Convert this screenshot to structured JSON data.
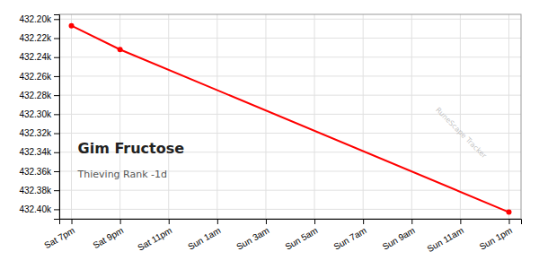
{
  "chart_data": {
    "type": "line",
    "title": "Gim Fructose",
    "subtitle": "Thieving Rank -1d",
    "annotations": [
      "RuneScape Tracker"
    ],
    "x": [
      0,
      2,
      18
    ],
    "values": [
      432207,
      432232,
      432403
    ],
    "color": "#ff0000",
    "marker": "circle",
    "xlim": [
      -0.5,
      18.5
    ],
    "xticks": [
      {
        "value": 0,
        "label": "Sat 7pm"
      },
      {
        "value": 2,
        "label": "Sat 9pm"
      },
      {
        "value": 4,
        "label": "Sat 11pm"
      },
      {
        "value": 6,
        "label": "Sun 1am"
      },
      {
        "value": 8,
        "label": "Sun 3am"
      },
      {
        "value": 10,
        "label": "Sun 5am"
      },
      {
        "value": 12,
        "label": "Sun 7am"
      },
      {
        "value": 14,
        "label": "Sun 9am"
      },
      {
        "value": 16,
        "label": "Sun 11am"
      },
      {
        "value": 18,
        "label": "Sun 1pm"
      }
    ],
    "ylim": [
      432410,
      432195
    ],
    "yticks": [
      {
        "value": 432200,
        "label": "432.20k"
      },
      {
        "value": 432220,
        "label": "432.22k"
      },
      {
        "value": 432240,
        "label": "432.24k"
      },
      {
        "value": 432260,
        "label": "432.26k"
      },
      {
        "value": 432280,
        "label": "432.28k"
      },
      {
        "value": 432300,
        "label": "432.30k"
      },
      {
        "value": 432320,
        "label": "432.32k"
      },
      {
        "value": 432340,
        "label": "432.34k"
      },
      {
        "value": 432360,
        "label": "432.36k"
      },
      {
        "value": 432380,
        "label": "432.38k"
      },
      {
        "value": 432400,
        "label": "432.40k"
      }
    ],
    "grid": true
  }
}
